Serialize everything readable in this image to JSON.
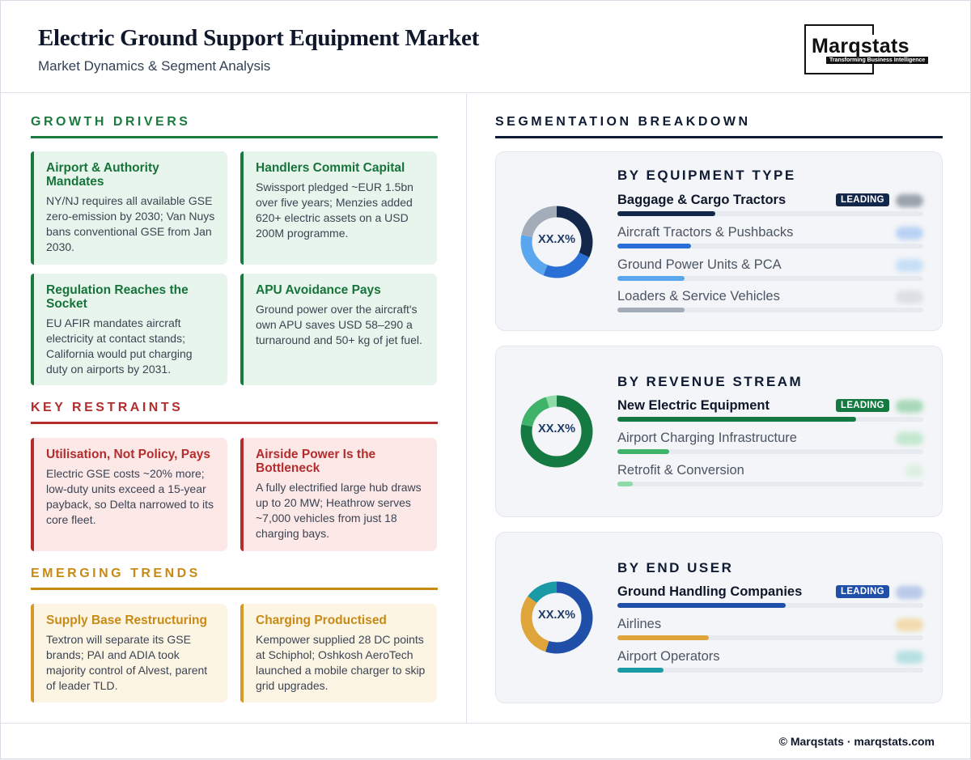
{
  "header": {
    "title": "Electric Ground Support Equipment Market",
    "subtitle": "Market Dynamics & Segment Analysis",
    "logo_word": "Marqstats",
    "logo_tagline": "Transforming Business Intelligence"
  },
  "drivers": {
    "heading": "GROWTH DRIVERS",
    "cards": [
      {
        "title": "Airport & Authority Mandates",
        "body": "NY/NJ requires all available GSE zero-emission by 2030; Van Nuys bans conventional GSE from Jan 2030."
      },
      {
        "title": "Handlers Commit Capital",
        "body": "Swissport pledged ~EUR 1.5bn over five years; Menzies added 620+ electric assets on a USD 200M programme."
      },
      {
        "title": "Regulation Reaches the Socket",
        "body": "EU AFIR mandates aircraft electricity at contact stands; California would put charging duty on airports by 2031."
      },
      {
        "title": "APU Avoidance Pays",
        "body": "Ground power over the aircraft's own APU saves USD 58–290 a turnaround and 50+ kg of jet fuel."
      }
    ]
  },
  "restraints": {
    "heading": "KEY RESTRAINTS",
    "cards": [
      {
        "title": "Utilisation, Not Policy, Pays",
        "body": "Electric GSE costs ~20% more; low-duty units exceed a 15-year payback, so Delta narrowed to its core fleet."
      },
      {
        "title": "Airside Power Is the Bottleneck",
        "body": "A fully electrified large hub draws up to 20 MW; Heathrow serves ~7,000 vehicles from just 18 charging bays."
      }
    ]
  },
  "trends": {
    "heading": "EMERGING TRENDS",
    "cards": [
      {
        "title": "Supply Base Restructuring",
        "body": "Textron will separate its GSE brands; PAI and ADIA took majority control of Alvest, parent of leader TLD."
      },
      {
        "title": "Charging Productised",
        "body": "Kempower supplied 28 DC points at Schiphol; Oshkosh AeroTech launched a mobile charger to skip grid upgrades."
      }
    ]
  },
  "segmentation": {
    "heading": "SEGMENTATION BREAKDOWN",
    "leading_label": "LEADING",
    "panels": [
      {
        "title": "BY EQUIPMENT TYPE",
        "donut_label": "XX.X%",
        "items": [
          {
            "label": "Baggage & Cargo Tractors",
            "share": 0.32,
            "color": "#13274b",
            "leading": true
          },
          {
            "label": "Aircraft Tractors & Pushbacks",
            "share": 0.24,
            "color": "#2a6fd6",
            "leading": false
          },
          {
            "label": "Ground Power Units & PCA",
            "share": 0.22,
            "color": "#5aa6ef",
            "leading": false
          },
          {
            "label": "Loaders & Service Vehicles",
            "share": 0.22,
            "color": "#a3acb9",
            "leading": false
          }
        ]
      },
      {
        "title": "BY REVENUE STREAM",
        "donut_label": "XX.X%",
        "items": [
          {
            "label": "New Electric Equipment",
            "share": 0.78,
            "color": "#157a41",
            "leading": true
          },
          {
            "label": "Airport Charging Infrastructure",
            "share": 0.17,
            "color": "#3fb36a",
            "leading": false
          },
          {
            "label": "Retrofit & Conversion",
            "share": 0.05,
            "color": "#8fdaa9",
            "leading": false
          }
        ]
      },
      {
        "title": "BY END USER",
        "donut_label": "XX.X%",
        "items": [
          {
            "label": "Ground Handling Companies",
            "share": 0.55,
            "color": "#1f4fa8",
            "leading": true
          },
          {
            "label": "Airlines",
            "share": 0.3,
            "color": "#e0a53a",
            "leading": false
          },
          {
            "label": "Airport Operators",
            "share": 0.15,
            "color": "#1a9aa6",
            "leading": false
          }
        ]
      }
    ]
  },
  "footer": {
    "text": "© Marqstats · marqstats.com"
  }
}
